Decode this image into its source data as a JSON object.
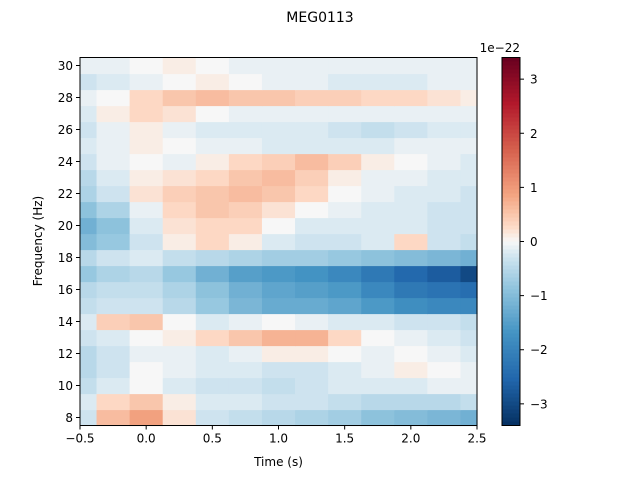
{
  "chart_data": {
    "type": "heatmap",
    "title": "MEG0113",
    "xlabel": "Time (s)",
    "ylabel": "Frequency (Hz)",
    "xlim": [
      -0.5,
      2.5
    ],
    "ylim": [
      7.5,
      30.5
    ],
    "x_ticks": [
      "-0.5",
      "0.0",
      "0.5",
      "1.0",
      "1.5",
      "2.0",
      "2.5"
    ],
    "y_ticks": [
      "8",
      "10",
      "12",
      "14",
      "16",
      "18",
      "20",
      "22",
      "24",
      "26",
      "28",
      "30"
    ],
    "frequencies": [
      8,
      9,
      10,
      11,
      12,
      13,
      14,
      15,
      16,
      17,
      18,
      19,
      20,
      21,
      22,
      23,
      24,
      25,
      26,
      27,
      28,
      29,
      30
    ],
    "times": [
      -0.5,
      -0.25,
      0.0,
      0.25,
      0.5,
      0.75,
      1.0,
      1.25,
      1.5,
      1.75,
      2.0,
      2.25,
      2.5
    ],
    "values_1e-22": [
      [
        -0.3,
        0.6,
        0.9,
        0.2,
        -0.3,
        -0.4,
        -0.5,
        -0.6,
        -0.7,
        -0.9,
        -1.0,
        -1.1,
        -1.2
      ],
      [
        -0.2,
        0.3,
        0.5,
        0.1,
        -0.2,
        -0.2,
        -0.3,
        -0.3,
        -0.4,
        -0.5,
        -0.5,
        -0.5,
        -0.4
      ],
      [
        -0.4,
        -0.2,
        0.0,
        -0.2,
        -0.3,
        -0.3,
        -0.4,
        -0.3,
        -0.2,
        -0.2,
        -0.2,
        -0.1,
        -0.1
      ],
      [
        -0.5,
        -0.3,
        0.0,
        -0.1,
        -0.2,
        -0.2,
        -0.3,
        -0.3,
        -0.2,
        -0.1,
        0.1,
        0.0,
        -0.1
      ],
      [
        -0.5,
        -0.3,
        -0.1,
        -0.1,
        -0.2,
        -0.1,
        0.1,
        0.1,
        0.0,
        -0.1,
        0.0,
        -0.1,
        -0.2
      ],
      [
        -0.3,
        -0.2,
        0.0,
        0.1,
        0.3,
        0.5,
        0.7,
        0.7,
        0.3,
        0.0,
        -0.1,
        -0.2,
        -0.3
      ],
      [
        -0.2,
        0.4,
        0.5,
        0.0,
        -0.2,
        -0.1,
        0.0,
        -0.1,
        -0.2,
        -0.2,
        -0.3,
        -0.3,
        -0.4
      ],
      [
        -0.4,
        -0.3,
        -0.3,
        -0.5,
        -0.8,
        -1.1,
        -1.3,
        -1.3,
        -1.4,
        -1.6,
        -1.8,
        -1.9,
        -1.9
      ],
      [
        -0.5,
        -0.4,
        -0.4,
        -0.6,
        -0.9,
        -1.2,
        -1.4,
        -1.5,
        -1.6,
        -1.9,
        -2.2,
        -2.3,
        -2.4
      ],
      [
        -0.8,
        -0.6,
        -0.5,
        -0.8,
        -1.2,
        -1.5,
        -1.6,
        -1.7,
        -1.9,
        -2.2,
        -2.5,
        -2.7,
        -3.0
      ],
      [
        -0.5,
        -0.3,
        -0.2,
        -0.4,
        -0.5,
        -0.6,
        -0.7,
        -0.7,
        -0.8,
        -0.9,
        -1.0,
        -1.1,
        -1.2
      ],
      [
        -1.0,
        -0.8,
        -0.3,
        0.1,
        0.3,
        0.1,
        -0.2,
        -0.3,
        -0.3,
        -0.2,
        0.3,
        -0.3,
        -0.4
      ],
      [
        -1.2,
        -0.9,
        -0.2,
        0.2,
        0.3,
        0.3,
        0.0,
        -0.2,
        -0.2,
        -0.2,
        -0.2,
        -0.3,
        -0.3
      ],
      [
        -0.9,
        -0.6,
        -0.1,
        0.3,
        0.5,
        0.4,
        0.2,
        0.0,
        -0.1,
        -0.2,
        -0.2,
        -0.3,
        -0.3
      ],
      [
        -0.6,
        -0.3,
        0.2,
        0.4,
        0.5,
        0.6,
        0.5,
        0.3,
        0.0,
        -0.1,
        -0.2,
        -0.2,
        -0.3
      ],
      [
        -0.5,
        -0.2,
        0.1,
        0.2,
        0.3,
        0.5,
        0.6,
        0.4,
        0.1,
        -0.1,
        -0.1,
        -0.2,
        -0.2
      ],
      [
        -0.3,
        -0.1,
        0.0,
        -0.1,
        0.1,
        0.3,
        0.4,
        0.6,
        0.4,
        0.1,
        0.0,
        -0.1,
        -0.2
      ],
      [
        -0.2,
        -0.1,
        0.1,
        0.0,
        -0.1,
        -0.1,
        -0.2,
        -0.2,
        -0.2,
        -0.2,
        -0.1,
        -0.1,
        -0.1
      ],
      [
        -0.3,
        -0.1,
        0.1,
        -0.1,
        -0.2,
        -0.2,
        -0.2,
        -0.2,
        -0.3,
        -0.4,
        -0.3,
        -0.2,
        -0.2
      ],
      [
        -0.2,
        0.1,
        0.3,
        0.2,
        0.0,
        -0.1,
        -0.1,
        -0.1,
        -0.1,
        -0.1,
        -0.1,
        -0.1,
        -0.1
      ],
      [
        -0.1,
        0.0,
        0.3,
        0.5,
        0.6,
        0.5,
        0.5,
        0.4,
        0.4,
        0.3,
        0.3,
        0.2,
        0.1
      ],
      [
        -0.3,
        -0.2,
        -0.1,
        0.0,
        0.1,
        0.0,
        -0.1,
        -0.1,
        -0.2,
        -0.2,
        -0.2,
        -0.1,
        -0.1
      ],
      [
        -0.1,
        -0.1,
        0.0,
        0.1,
        0.0,
        -0.1,
        -0.1,
        -0.1,
        -0.1,
        -0.1,
        -0.1,
        -0.1,
        -0.1
      ]
    ],
    "colormap": "RdBu_r",
    "colorbar": {
      "vmin": -3.4,
      "vmax": 3.4,
      "ticks": [
        "-3",
        "-2",
        "-1",
        "0",
        "1",
        "2",
        "3"
      ],
      "offset_label": "1e−22"
    }
  }
}
